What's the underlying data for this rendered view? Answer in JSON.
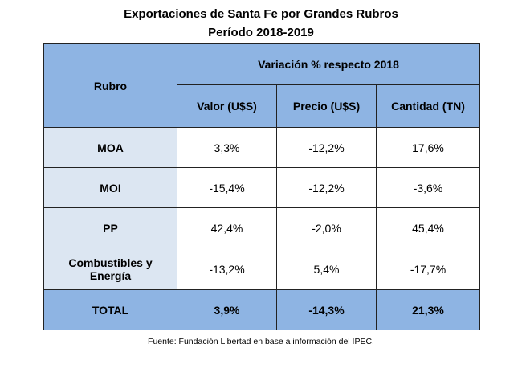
{
  "title_line1": "Exportaciones de Santa Fe por Grandes Rubros",
  "title_line2": "Período 2018-2019",
  "table": {
    "rubro_header": "Rubro",
    "group_header": "Variación % respecto 2018",
    "columns": [
      "Valor (U$S)",
      "Precio (U$S)",
      "Cantidad (TN)"
    ],
    "rows": [
      {
        "label": "MOA",
        "values": [
          "3,3%",
          "-12,2%",
          "17,6%"
        ]
      },
      {
        "label": "MOI",
        "values": [
          "-15,4%",
          "-12,2%",
          "-3,6%"
        ]
      },
      {
        "label": "PP",
        "values": [
          "42,4%",
          "-2,0%",
          "45,4%"
        ]
      },
      {
        "label": "Combustibles y Energía",
        "values": [
          "-13,2%",
          "5,4%",
          "-17,7%"
        ]
      }
    ],
    "total": {
      "label": "TOTAL",
      "values": [
        "3,9%",
        "-14,3%",
        "21,3%"
      ]
    }
  },
  "source": "Fuente: Fundación Libertad en base a información del IPEC.",
  "colors": {
    "header_fill": "#8eb4e3",
    "label_fill": "#dce6f2",
    "border": "#222222"
  }
}
